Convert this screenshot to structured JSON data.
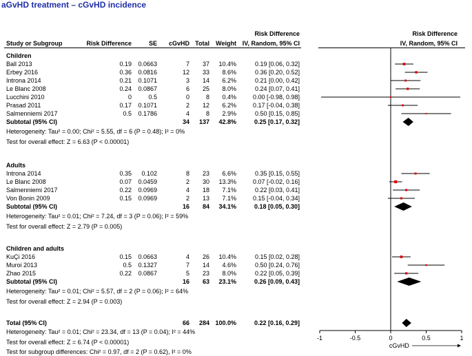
{
  "title": "aGvHD treatment – cGvHD incidence",
  "headers": {
    "study": "Study or Subgroup",
    "risk_difference": "Risk Difference",
    "se": "SE",
    "cgvhd": "cGvHD",
    "total": "Total",
    "weight": "Weight",
    "rd_ci_top": "Risk Difference",
    "rd_ci_bottom": "IV, Random, 95% CI",
    "plot_top": "Risk Difference",
    "plot_bottom": "IV, Random, 95% CI"
  },
  "colors": {
    "title": "#1f2fa8",
    "point": "#e00000",
    "diamond": "#000000"
  },
  "groups": [
    {
      "name": "Children",
      "studies": [
        {
          "study": "Ball 2013",
          "rd": "0.19",
          "se": "0.0663",
          "cgvhd": "7",
          "total": "37",
          "weight": "10.4%",
          "ci": "0.19 [0.06, 0.32]"
        },
        {
          "study": "Erbey 2016",
          "rd": "0.36",
          "se": "0.0816",
          "cgvhd": "12",
          "total": "33",
          "weight": "8.6%",
          "ci": "0.36 [0.20, 0.52]"
        },
        {
          "study": "Introna 2014",
          "rd": "0.21",
          "se": "0.1071",
          "cgvhd": "3",
          "total": "14",
          "weight": "6.2%",
          "ci": "0.21 [0.00, 0.42]"
        },
        {
          "study": "Le Blanc 2008",
          "rd": "0.24",
          "se": "0.0867",
          "cgvhd": "6",
          "total": "25",
          "weight": "8.0%",
          "ci": "0.24 [0.07, 0.41]"
        },
        {
          "study": "Lucchini 2010",
          "rd": "0",
          "se": "0.5",
          "cgvhd": "0",
          "total": "8",
          "weight": "0.4%",
          "ci": "0.00 [-0.98, 0.98]"
        },
        {
          "study": "Prasad 2011",
          "rd": "0.17",
          "se": "0.1071",
          "cgvhd": "2",
          "total": "12",
          "weight": "6.2%",
          "ci": "0.17 [-0.04, 0.38]"
        },
        {
          "study": "Salmenniemi 2017",
          "rd": "0.5",
          "se": "0.1786",
          "cgvhd": "4",
          "total": "8",
          "weight": "2.9%",
          "ci": "0.50 [0.15, 0.85]"
        }
      ],
      "subtotal": {
        "label": "Subtotal (95% CI)",
        "cgvhd": "34",
        "total": "137",
        "weight": "42.8%",
        "ci": "0.25 [0.17, 0.32]"
      },
      "heterogeneity": "Heterogeneity: Tau² = 0.00; Chi² = 5.55, df = 6 (P = 0.48); I² = 0%",
      "overall_effect": "Test for overall effect: Z = 6.63 (P < 0.00001)"
    },
    {
      "name": "Adults",
      "studies": [
        {
          "study": "Introna 2014",
          "rd": "0.35",
          "se": "0.102",
          "cgvhd": "8",
          "total": "23",
          "weight": "6.6%",
          "ci": "0.35 [0.15, 0.55]"
        },
        {
          "study": "Le Blanc 2008",
          "rd": "0.07",
          "se": "0.0459",
          "cgvhd": "2",
          "total": "30",
          "weight": "13.3%",
          "ci": "0.07 [-0.02, 0.16]"
        },
        {
          "study": "Salmenniemi 2017",
          "rd": "0.22",
          "se": "0.0969",
          "cgvhd": "4",
          "total": "18",
          "weight": "7.1%",
          "ci": "0.22 [0.03, 0.41]"
        },
        {
          "study": "Von Bonin 2009",
          "rd": "0.15",
          "se": "0.0969",
          "cgvhd": "2",
          "total": "13",
          "weight": "7.1%",
          "ci": "0.15 [-0.04, 0.34]"
        }
      ],
      "subtotal": {
        "label": "Subtotal (95% CI)",
        "cgvhd": "16",
        "total": "84",
        "weight": "34.1%",
        "ci": "0.18 [0.05, 0.30]"
      },
      "heterogeneity": "Heterogeneity: Tau² = 0.01; Chi² = 7.24, df = 3 (P = 0.06); I² = 59%",
      "overall_effect": "Test for overall effect: Z = 2.79 (P = 0.005)"
    },
    {
      "name": "Children and adults",
      "studies": [
        {
          "study": "KuÇi 2016",
          "rd": "0.15",
          "se": "0.0663",
          "cgvhd": "4",
          "total": "26",
          "weight": "10.4%",
          "ci": "0.15 [0.02, 0.28]"
        },
        {
          "study": "Muroi 2013",
          "rd": "0.5",
          "se": "0.1327",
          "cgvhd": "7",
          "total": "14",
          "weight": "4.6%",
          "ci": "0.50 [0.24, 0.76]"
        },
        {
          "study": "Zhao 2015",
          "rd": "0.22",
          "se": "0.0867",
          "cgvhd": "5",
          "total": "23",
          "weight": "8.0%",
          "ci": "0.22 [0.05, 0.39]"
        }
      ],
      "subtotal": {
        "label": "Subtotal (95% CI)",
        "cgvhd": "16",
        "total": "63",
        "weight": "23.1%",
        "ci": "0.26 [0.09, 0.43]"
      },
      "heterogeneity": "Heterogeneity: Tau² = 0.01; Chi² = 5.57, df = 2 (P = 0.06); I² = 64%",
      "overall_effect": "Test for overall effect: Z = 2.94 (P = 0.003)"
    }
  ],
  "total": {
    "label": "Total (95% CI)",
    "cgvhd": "66",
    "total": "284",
    "weight": "100.0%",
    "ci": "0.22 [0.16, 0.29]",
    "heterogeneity": "Heterogeneity: Tau² = 0.01; Chi² = 23.34, df = 13 (P = 0.04); I² = 44%",
    "overall_effect": "Test for overall effect: Z = 6.74 (P < 0.00001)",
    "subgroup_differences": "Test for subgroup differences: Chi² = 0.97, df = 2 (P = 0.62), I² = 0%"
  },
  "chart_data": {
    "type": "forest",
    "title": "aGvHD treatment – cGvHD incidence",
    "xlabel": "cGvHD",
    "xlim": [
      -1,
      1
    ],
    "xticks": [
      "-1",
      "-0.5",
      "0",
      "0.5",
      "1"
    ],
    "null_line": 0,
    "points": [
      {
        "study": "Ball 2013",
        "group": "Children",
        "estimate": 0.19,
        "lower": 0.06,
        "upper": 0.32,
        "weight": 10.4
      },
      {
        "study": "Erbey 2016",
        "group": "Children",
        "estimate": 0.36,
        "lower": 0.2,
        "upper": 0.52,
        "weight": 8.6
      },
      {
        "study": "Introna 2014",
        "group": "Children",
        "estimate": 0.21,
        "lower": 0.0,
        "upper": 0.42,
        "weight": 6.2
      },
      {
        "study": "Le Blanc 2008",
        "group": "Children",
        "estimate": 0.24,
        "lower": 0.07,
        "upper": 0.41,
        "weight": 8.0
      },
      {
        "study": "Lucchini 2010",
        "group": "Children",
        "estimate": 0.0,
        "lower": -0.98,
        "upper": 0.98,
        "weight": 0.4
      },
      {
        "study": "Prasad 2011",
        "group": "Children",
        "estimate": 0.17,
        "lower": -0.04,
        "upper": 0.38,
        "weight": 6.2
      },
      {
        "study": "Salmenniemi 2017",
        "group": "Children",
        "estimate": 0.5,
        "lower": 0.15,
        "upper": 0.85,
        "weight": 2.9
      },
      {
        "study": "Introna 2014",
        "group": "Adults",
        "estimate": 0.35,
        "lower": 0.15,
        "upper": 0.55,
        "weight": 6.6
      },
      {
        "study": "Le Blanc 2008",
        "group": "Adults",
        "estimate": 0.07,
        "lower": -0.02,
        "upper": 0.16,
        "weight": 13.3
      },
      {
        "study": "Salmenniemi 2017",
        "group": "Adults",
        "estimate": 0.22,
        "lower": 0.03,
        "upper": 0.41,
        "weight": 7.1
      },
      {
        "study": "Von Bonin 2009",
        "group": "Adults",
        "estimate": 0.15,
        "lower": -0.04,
        "upper": 0.34,
        "weight": 7.1
      },
      {
        "study": "KuÇi 2016",
        "group": "Children and adults",
        "estimate": 0.15,
        "lower": 0.02,
        "upper": 0.28,
        "weight": 10.4
      },
      {
        "study": "Muroi 2013",
        "group": "Children and adults",
        "estimate": 0.5,
        "lower": 0.24,
        "upper": 0.76,
        "weight": 4.6
      },
      {
        "study": "Zhao 2015",
        "group": "Children and adults",
        "estimate": 0.22,
        "lower": 0.05,
        "upper": 0.39,
        "weight": 8.0
      }
    ],
    "diamonds": [
      {
        "label": "Children subtotal",
        "estimate": 0.25,
        "lower": 0.17,
        "upper": 0.32
      },
      {
        "label": "Adults subtotal",
        "estimate": 0.18,
        "lower": 0.05,
        "upper": 0.3
      },
      {
        "label": "Children and adults subtotal",
        "estimate": 0.26,
        "lower": 0.09,
        "upper": 0.43
      },
      {
        "label": "Total",
        "estimate": 0.22,
        "lower": 0.16,
        "upper": 0.29
      }
    ]
  }
}
